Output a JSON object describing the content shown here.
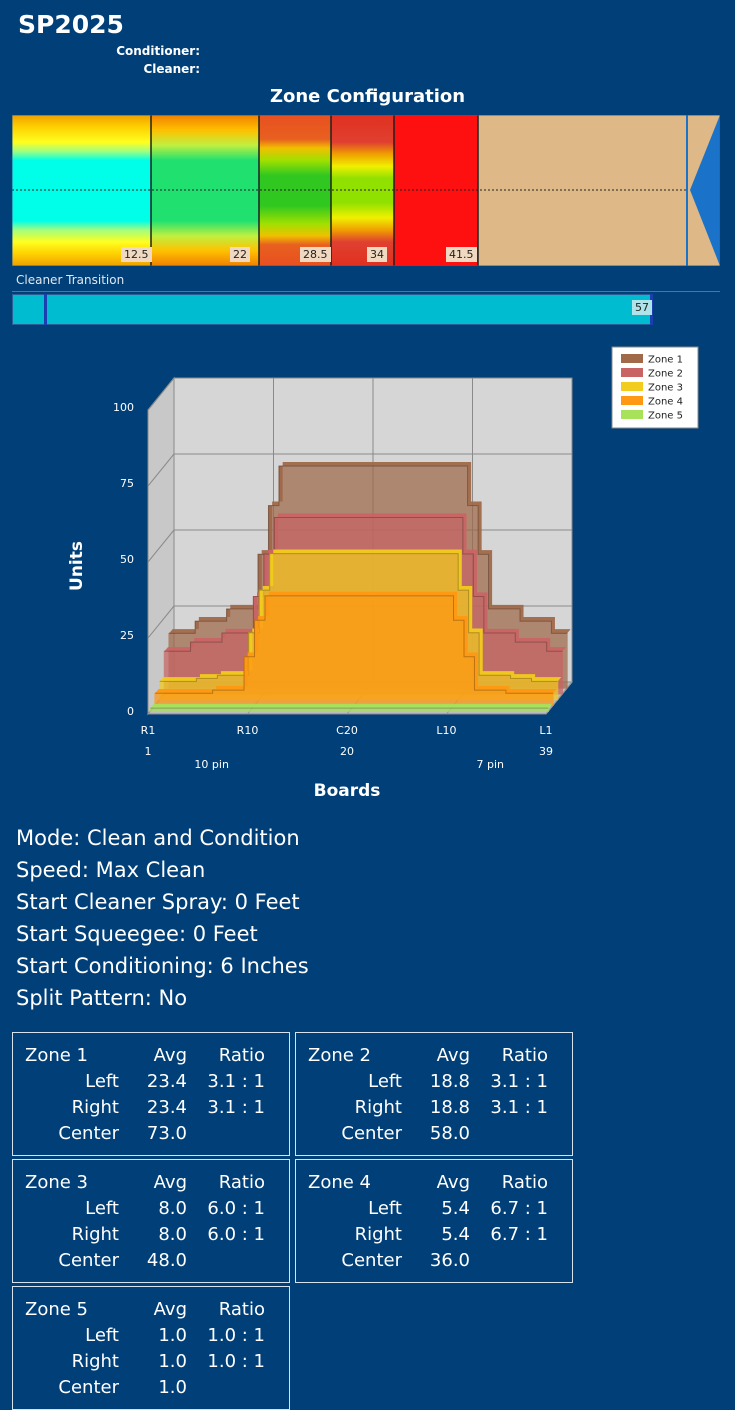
{
  "header": {
    "title": "SP2025",
    "conditioner_label": "Conditioner:",
    "cleaner_label": "Cleaner:"
  },
  "zone_config": {
    "title": "Zone Configuration",
    "zone_labels": [
      "12.5",
      "22",
      "28.5",
      "34",
      "41.5"
    ]
  },
  "cleaner_transition": {
    "label": "Cleaner Transition",
    "value": "57"
  },
  "chart_data": {
    "type": "area",
    "ylabel": "Units",
    "xlabel": "Boards",
    "ylim": [
      0,
      100
    ],
    "y_ticks": [
      "0",
      "25",
      "50",
      "75",
      "100"
    ],
    "x_ticks": [
      "R1",
      "R10",
      "C20",
      "L10",
      "L1"
    ],
    "x_tick_numbers": [
      "1",
      "20",
      "39"
    ],
    "pin_labels": [
      "10 pin",
      "7 pin"
    ],
    "legend_position": "top-right",
    "boards": [
      1,
      2,
      3,
      4,
      5,
      6,
      7,
      8,
      9,
      10,
      11,
      12,
      13,
      14,
      15,
      16,
      17,
      18,
      19,
      20,
      21,
      22,
      23,
      24,
      25,
      26,
      27,
      28,
      29,
      30,
      31,
      32,
      33,
      34,
      35,
      36,
      37,
      38,
      39
    ],
    "series": [
      {
        "name": "Zone 1",
        "color": "#a0694a",
        "values": [
          18,
          18,
          18,
          22,
          22,
          22,
          26,
          26,
          26,
          44,
          60,
          73,
          73,
          73,
          73,
          73,
          73,
          73,
          73,
          73,
          73,
          73,
          73,
          73,
          73,
          73,
          73,
          73,
          73,
          60,
          44,
          26,
          26,
          26,
          22,
          22,
          22,
          18,
          18
        ]
      },
      {
        "name": "Zone 2",
        "color": "#c86464",
        "values": [
          14,
          14,
          14,
          17,
          17,
          17,
          20,
          20,
          20,
          32,
          46,
          58,
          58,
          58,
          58,
          58,
          58,
          58,
          58,
          58,
          58,
          58,
          58,
          58,
          58,
          58,
          58,
          58,
          58,
          46,
          32,
          20,
          20,
          20,
          17,
          17,
          17,
          14,
          14
        ]
      },
      {
        "name": "Zone 3",
        "color": "#f2cc1e",
        "values": [
          6,
          6,
          6,
          6,
          7,
          7,
          8,
          8,
          8,
          22,
          36,
          48,
          48,
          48,
          48,
          48,
          48,
          48,
          48,
          48,
          48,
          48,
          48,
          48,
          48,
          48,
          48,
          48,
          48,
          36,
          22,
          8,
          8,
          8,
          7,
          7,
          6,
          6,
          6
        ]
      },
      {
        "name": "Zone 4",
        "color": "#ff9812",
        "values": [
          4,
          4,
          4,
          4,
          4,
          4,
          5,
          5,
          5,
          16,
          28,
          36,
          36,
          36,
          36,
          36,
          36,
          36,
          36,
          36,
          36,
          36,
          36,
          36,
          36,
          36,
          36,
          36,
          36,
          28,
          16,
          5,
          5,
          5,
          4,
          4,
          4,
          4,
          4
        ]
      },
      {
        "name": "Zone 5",
        "color": "#a8e25a",
        "values": [
          1,
          1,
          1,
          1,
          1,
          1,
          1,
          1,
          1,
          1,
          1,
          1,
          1,
          1,
          1,
          1,
          1,
          1,
          1,
          1,
          1,
          1,
          1,
          1,
          1,
          1,
          1,
          1,
          1,
          1,
          1,
          1,
          1,
          1,
          1,
          1,
          1,
          1,
          1
        ]
      }
    ]
  },
  "settings": [
    "Mode: Clean and Condition",
    "Speed: Max Clean",
    "Start Cleaner Spray: 0 Feet",
    "Start Squeegee: 0 Feet",
    "Start Conditioning: 6 Inches",
    "Split Pattern: No"
  ],
  "zone_stats_headers": {
    "avg": "Avg",
    "ratio": "Ratio",
    "left": "Left",
    "right": "Right",
    "center": "Center"
  },
  "zone_stats": [
    {
      "name": "Zone 1",
      "left_avg": "23.4",
      "left_ratio": "3.1 : 1",
      "right_avg": "23.4",
      "right_ratio": "3.1 : 1",
      "center_avg": "73.0"
    },
    {
      "name": "Zone 2",
      "left_avg": "18.8",
      "left_ratio": "3.1 : 1",
      "right_avg": "18.8",
      "right_ratio": "3.1 : 1",
      "center_avg": "58.0"
    },
    {
      "name": "Zone 3",
      "left_avg": "8.0",
      "left_ratio": "6.0 : 1",
      "right_avg": "8.0",
      "right_ratio": "6.0 : 1",
      "center_avg": "48.0"
    },
    {
      "name": "Zone 4",
      "left_avg": "5.4",
      "left_ratio": "6.7 : 1",
      "right_avg": "5.4",
      "right_ratio": "6.7 : 1",
      "center_avg": "36.0"
    },
    {
      "name": "Zone 5",
      "left_avg": "1.0",
      "left_ratio": "1.0 : 1",
      "right_avg": "1.0",
      "right_ratio": "1.0 : 1",
      "center_avg": "1.0"
    }
  ]
}
